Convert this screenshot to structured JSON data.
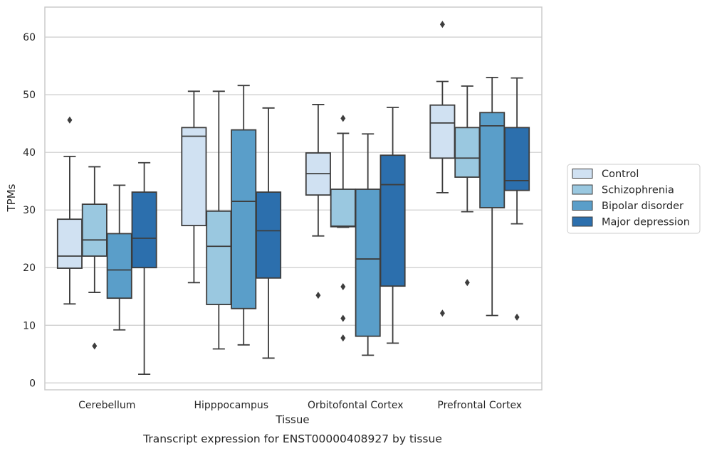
{
  "chart_data": {
    "type": "box",
    "caption": "Transcript expression for ENST00000408927 by tissue",
    "xlabel": "Tissue",
    "ylabel": "TPMs",
    "ylim": [
      -1.2,
      65.2
    ],
    "yticks": [
      "0",
      "10",
      "20",
      "30",
      "40",
      "50",
      "60"
    ],
    "grid": "horizontal",
    "legend_position": "right",
    "categories": [
      "Cerebellum",
      "Hipppocampus",
      "Orbitofontal Cortex",
      "Prefrontal Cortex"
    ],
    "series": [
      {
        "name": "Control",
        "color": "#d0e1f2",
        "boxes": [
          {
            "whislo": 13.7,
            "q1": 19.9,
            "med": 22.0,
            "q3": 28.4,
            "whishi": 39.3,
            "fliers": [
              45.6
            ]
          },
          {
            "whislo": 17.4,
            "q1": 27.3,
            "med": 42.8,
            "q3": 44.3,
            "whishi": 50.6,
            "fliers": []
          },
          {
            "whislo": 25.5,
            "q1": 32.6,
            "med": 36.3,
            "q3": 39.9,
            "whishi": 48.3,
            "fliers": [
              15.2
            ]
          },
          {
            "whislo": 33.0,
            "q1": 39.0,
            "med": 45.1,
            "q3": 48.2,
            "whishi": 52.3,
            "fliers": [
              62.2,
              12.1
            ]
          }
        ]
      },
      {
        "name": "Schizophrenia",
        "color": "#9ac8e0",
        "boxes": [
          {
            "whislo": 15.7,
            "q1": 22.0,
            "med": 24.8,
            "q3": 31.0,
            "whishi": 37.5,
            "fliers": [
              6.4
            ]
          },
          {
            "whislo": 5.9,
            "q1": 13.6,
            "med": 23.7,
            "q3": 29.8,
            "whishi": 50.6,
            "fliers": []
          },
          {
            "whislo": 27.0,
            "q1": 27.1,
            "med": 27.2,
            "q3": 33.6,
            "whishi": 43.3,
            "fliers": [
              45.9,
              16.7,
              11.2,
              7.8
            ]
          },
          {
            "whislo": 29.7,
            "q1": 35.7,
            "med": 39.0,
            "q3": 44.3,
            "whishi": 51.5,
            "fliers": [
              17.4
            ]
          }
        ]
      },
      {
        "name": "Bipolar disorder",
        "color": "#5a9ec9",
        "boxes": [
          {
            "whislo": 9.2,
            "q1": 14.7,
            "med": 19.6,
            "q3": 25.9,
            "whishi": 34.3,
            "fliers": []
          },
          {
            "whislo": 6.6,
            "q1": 12.9,
            "med": 31.5,
            "q3": 43.9,
            "whishi": 51.6,
            "fliers": []
          },
          {
            "whislo": 4.8,
            "q1": 8.1,
            "med": 21.5,
            "q3": 33.6,
            "whishi": 43.2,
            "fliers": []
          },
          {
            "whislo": 11.7,
            "q1": 30.4,
            "med": 44.6,
            "q3": 46.9,
            "whishi": 53.0,
            "fliers": []
          }
        ]
      },
      {
        "name": "Major depression",
        "color": "#2c6fad",
        "boxes": [
          {
            "whislo": 1.5,
            "q1": 20.0,
            "med": 25.1,
            "q3": 33.1,
            "whishi": 38.2,
            "fliers": []
          },
          {
            "whislo": 4.3,
            "q1": 18.2,
            "med": 26.4,
            "q3": 33.1,
            "whishi": 47.7,
            "fliers": []
          },
          {
            "whislo": 6.9,
            "q1": 16.8,
            "med": 34.4,
            "q3": 39.5,
            "whishi": 47.8,
            "fliers": []
          },
          {
            "whislo": 27.6,
            "q1": 33.4,
            "med": 35.1,
            "q3": 44.3,
            "whishi": 52.9,
            "fliers": [
              11.4
            ]
          }
        ]
      }
    ]
  }
}
